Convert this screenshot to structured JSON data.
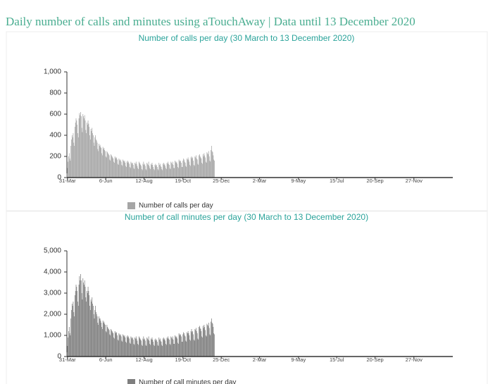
{
  "title": "Daily number of calls and minutes using aTouchAway | Data until 13 December 2020",
  "chart_data": [
    {
      "type": "bar",
      "title": "Number of calls per day (30 March to 13 December 2020)",
      "series": [
        {
          "name": "Number of calls per day",
          "color": "#a6a6a6",
          "values": [
            40,
            90,
            150,
            200,
            230,
            180,
            160,
            300,
            360,
            400,
            380,
            420,
            330,
            300,
            480,
            520,
            560,
            540,
            500,
            420,
            380,
            560,
            610,
            590,
            620,
            580,
            470,
            430,
            600,
            580,
            560,
            590,
            540,
            450,
            420,
            520,
            500,
            540,
            510,
            480,
            400,
            360,
            460,
            440,
            470,
            420,
            400,
            330,
            300,
            380,
            400,
            360,
            350,
            330,
            270,
            250,
            320,
            300,
            310,
            290,
            280,
            230,
            210,
            290,
            270,
            280,
            260,
            250,
            200,
            190,
            250,
            240,
            230,
            220,
            210,
            170,
            160,
            220,
            210,
            200,
            190,
            180,
            150,
            140,
            200,
            190,
            180,
            190,
            170,
            130,
            120,
            180,
            170,
            160,
            170,
            150,
            120,
            110,
            170,
            160,
            150,
            160,
            140,
            110,
            100,
            150,
            160,
            140,
            150,
            130,
            100,
            90,
            150,
            140,
            130,
            140,
            120,
            90,
            80,
            140,
            130,
            150,
            130,
            110,
            90,
            80,
            150,
            140,
            130,
            120,
            110,
            80,
            70,
            130,
            150,
            120,
            130,
            110,
            80,
            70,
            140,
            130,
            120,
            150,
            110,
            90,
            80,
            130,
            120,
            140,
            120,
            100,
            80,
            70,
            120,
            130,
            110,
            120,
            100,
            80,
            70,
            140,
            120,
            130,
            110,
            100,
            80,
            70,
            130,
            140,
            120,
            130,
            110,
            90,
            80,
            140,
            130,
            150,
            130,
            120,
            90,
            80,
            150,
            140,
            130,
            150,
            120,
            90,
            90,
            160,
            150,
            140,
            150,
            130,
            100,
            90,
            170,
            160,
            150,
            160,
            140,
            100,
            100,
            160,
            180,
            170,
            150,
            140,
            110,
            100,
            180,
            170,
            190,
            170,
            150,
            120,
            110,
            190,
            200,
            180,
            190,
            160,
            120,
            110,
            200,
            190,
            210,
            180,
            170,
            130,
            120,
            210,
            220,
            200,
            190,
            180,
            140,
            130,
            220,
            200,
            230,
            210,
            190,
            150,
            140,
            240,
            230,
            220,
            250,
            200,
            160,
            150,
            260,
            300,
            250,
            240,
            210,
            170,
            160
          ]
        }
      ],
      "ylim": [
        0,
        1000
      ],
      "yticks": [
        0,
        200,
        400,
        600,
        800,
        {
          "value": 1000,
          "label": "1,000"
        }
      ],
      "xlim": [
        0,
        675
      ],
      "xticks": [
        {
          "value": 1,
          "label": "31-Mar"
        },
        {
          "value": 68,
          "label": "6-Jun"
        },
        {
          "value": 135,
          "label": "12-Aug"
        },
        {
          "value": 203,
          "label": "19-Oct"
        },
        {
          "value": 270,
          "label": "25-Dec"
        },
        {
          "value": 337,
          "label": "2-Mar"
        },
        {
          "value": 405,
          "label": "9-May"
        },
        {
          "value": 472,
          "label": "15-Jul"
        },
        {
          "value": 539,
          "label": "20-Sep"
        },
        {
          "value": 607,
          "label": "27-Nov"
        }
      ]
    },
    {
      "type": "bar",
      "title": "Number of call minutes per day (30 March to 13 December 2020)",
      "series": [
        {
          "name": "Number of call minutes per day",
          "color": "#7f7f7f",
          "values": [
            200,
            500,
            900,
            1200,
            1400,
            1100,
            1000,
            1800,
            2200,
            2500,
            2400,
            2600,
            2100,
            1900,
            2900,
            3100,
            3400,
            3300,
            3100,
            2600,
            2400,
            3400,
            3800,
            3600,
            3900,
            3600,
            3000,
            2700,
            3700,
            3500,
            3400,
            3600,
            3300,
            2800,
            2600,
            3100,
            3000,
            3300,
            3100,
            2900,
            2400,
            2200,
            2700,
            2600,
            2800,
            2500,
            2400,
            2000,
            1800,
            2200,
            2400,
            2100,
            2000,
            1900,
            1600,
            1500,
            1900,
            1800,
            1800,
            1700,
            1600,
            1400,
            1300,
            1700,
            1600,
            1650,
            1550,
            1500,
            1200,
            1150,
            1500,
            1400,
            1350,
            1300,
            1250,
            1050,
            1000,
            1300,
            1250,
            1200,
            1150,
            1100,
            900,
            850,
            1200,
            1150,
            1100,
            1150,
            1000,
            800,
            750,
            1100,
            1050,
            1000,
            1050,
            950,
            750,
            700,
            1050,
            1000,
            950,
            1000,
            900,
            700,
            650,
            950,
            1000,
            900,
            950,
            850,
            650,
            600,
            950,
            900,
            850,
            900,
            800,
            600,
            550,
            900,
            850,
            950,
            850,
            750,
            600,
            550,
            950,
            900,
            850,
            800,
            750,
            550,
            500,
            850,
            950,
            800,
            850,
            750,
            550,
            500,
            900,
            850,
            800,
            950,
            750,
            600,
            550,
            850,
            800,
            900,
            800,
            700,
            550,
            500,
            800,
            850,
            750,
            800,
            700,
            550,
            500,
            900,
            800,
            850,
            750,
            700,
            550,
            500,
            850,
            900,
            800,
            850,
            750,
            600,
            550,
            900,
            850,
            950,
            850,
            800,
            600,
            550,
            950,
            900,
            850,
            950,
            800,
            600,
            600,
            1000,
            950,
            900,
            950,
            850,
            650,
            600,
            1100,
            1050,
            1000,
            1050,
            950,
            700,
            700,
            1050,
            1150,
            1100,
            1000,
            950,
            750,
            700,
            1150,
            1100,
            1200,
            1100,
            1000,
            800,
            750,
            1200,
            1300,
            1150,
            1200,
            1050,
            800,
            750,
            1300,
            1250,
            1350,
            1200,
            1100,
            850,
            800,
            1400,
            1450,
            1350,
            1300,
            1200,
            950,
            900,
            1450,
            1350,
            1500,
            1400,
            1250,
            1000,
            950,
            1550,
            1500,
            1450,
            1600,
            1350,
            1050,
            1000,
            1650,
            1800,
            1600,
            1550,
            1400,
            1100,
            1050
          ]
        }
      ],
      "ylim": [
        0,
        5000
      ],
      "yticks": [
        0,
        {
          "value": 1000,
          "label": "1,000"
        },
        {
          "value": 2000,
          "label": "2,000"
        },
        {
          "value": 3000,
          "label": "3,000"
        },
        {
          "value": 4000,
          "label": "4,000"
        },
        {
          "value": 5000,
          "label": "5,000"
        }
      ],
      "xlim": [
        0,
        675
      ],
      "xticks": [
        {
          "value": 1,
          "label": "31-Mar"
        },
        {
          "value": 68,
          "label": "6-Jun"
        },
        {
          "value": 135,
          "label": "12-Aug"
        },
        {
          "value": 203,
          "label": "19-Oct"
        },
        {
          "value": 270,
          "label": "25-Dec"
        },
        {
          "value": 337,
          "label": "2-Mar"
        },
        {
          "value": 405,
          "label": "9-May"
        },
        {
          "value": 472,
          "label": "15-Jul"
        },
        {
          "value": 539,
          "label": "20-Sep"
        },
        {
          "value": 607,
          "label": "27-Nov"
        }
      ]
    }
  ]
}
